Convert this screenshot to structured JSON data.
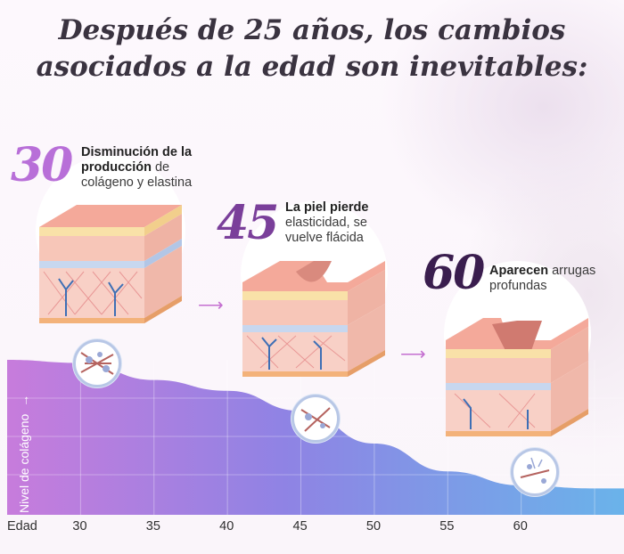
{
  "title_line1": "Después de 25 años, los cambios",
  "title_line2": "asociados a la edad son inevitables:",
  "stages": [
    {
      "age": "30",
      "bold1": "Disminución de la",
      "bold2": "producción",
      "rest2": " de",
      "line3": "colágeno y elastina",
      "color": "#b86fd8"
    },
    {
      "age": "45",
      "bold1": "La piel pierde",
      "line2": "elasticidad, se",
      "line3": "vuelve flácida",
      "color": "#7a3f9a"
    },
    {
      "age": "60",
      "bold1": "Aparecen",
      "rest1": " arrugas",
      "line2": "profundas",
      "color": "#3a1d4e"
    }
  ],
  "chart_data": {
    "type": "area",
    "xlabel": "Edad",
    "ylabel": "Nivel de colágeno",
    "x_ticks": [
      "30",
      "35",
      "40",
      "45",
      "50",
      "55",
      "60"
    ],
    "x": [
      25,
      30,
      35,
      40,
      45,
      50,
      55,
      60,
      65
    ],
    "y": [
      100,
      98,
      87,
      80,
      67,
      46,
      28,
      19,
      17
    ],
    "grid": true,
    "gradient": [
      "#c77cdc",
      "#6fb0e8"
    ]
  }
}
